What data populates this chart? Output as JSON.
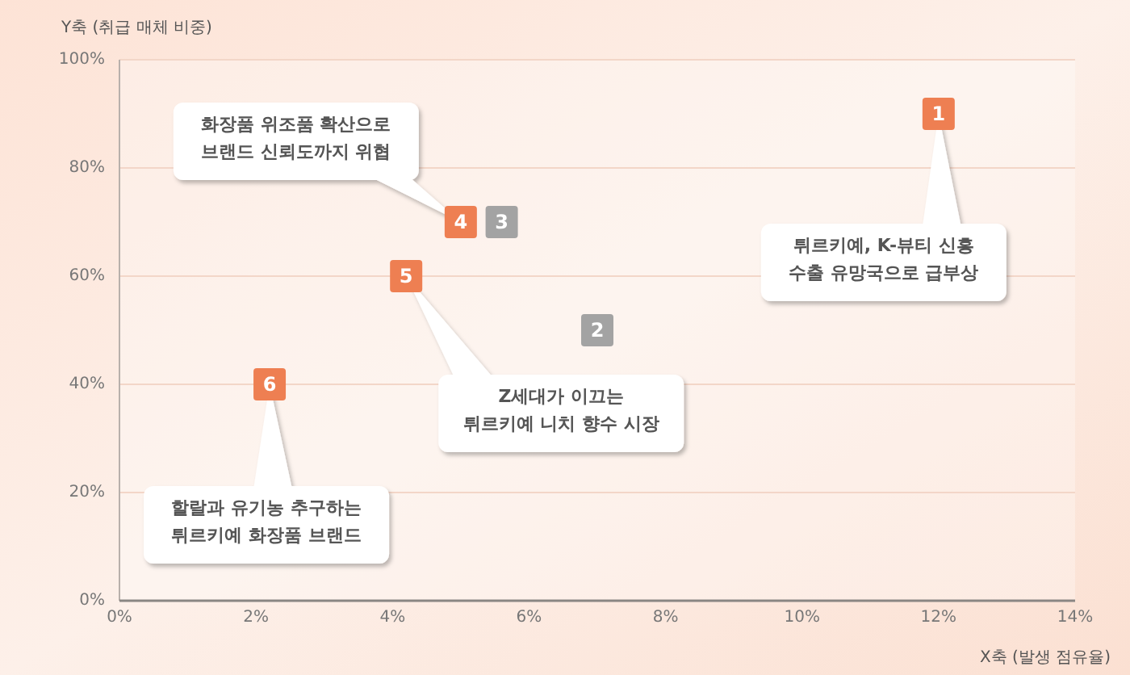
{
  "chart_data": {
    "type": "scatter",
    "xlabel": "X축 (발생 점유율)",
    "ylabel": "Y축 (취급 매체 비중)",
    "xlim": [
      0,
      14
    ],
    "ylim": [
      0,
      100
    ],
    "xticks": [
      {
        "value": 0,
        "label": "0%"
      },
      {
        "value": 2,
        "label": "2%"
      },
      {
        "value": 4,
        "label": "4%"
      },
      {
        "value": 6,
        "label": "6%"
      },
      {
        "value": 8,
        "label": "8%"
      },
      {
        "value": 10,
        "label": "10%"
      },
      {
        "value": 12,
        "label": "12%"
      },
      {
        "value": 14,
        "label": "14%"
      }
    ],
    "yticks": [
      {
        "value": 0,
        "label": "0%"
      },
      {
        "value": 20,
        "label": "20%"
      },
      {
        "value": 40,
        "label": "40%"
      },
      {
        "value": 60,
        "label": "60%"
      },
      {
        "value": 80,
        "label": "80%"
      },
      {
        "value": 100,
        "label": "100%"
      }
    ],
    "grid": "y",
    "marker": "square",
    "series": [
      {
        "color": "#ee7f52",
        "x": [
          12,
          5,
          4.2,
          2.2
        ],
        "values": [
          90,
          70,
          60,
          40
        ]
      },
      {
        "color": "#a3a3a3",
        "x": [
          7,
          5.6
        ],
        "values": [
          50,
          70
        ]
      }
    ],
    "annotations": [
      {
        "text": "1",
        "x": 12,
        "y": 90
      },
      {
        "text": "2",
        "x": 7,
        "y": 50
      },
      {
        "text": "3",
        "x": 5.6,
        "y": 70
      },
      {
        "text": "4",
        "x": 5,
        "y": 70
      },
      {
        "text": "5",
        "x": 4.2,
        "y": 60
      },
      {
        "text": "6",
        "x": 2.2,
        "y": 40
      },
      "튀르키예, K-뷰티 신흥\n수출 유망국으로 급부상",
      "화장품 위조품 확산으로\n브랜드 신뢰도까지 위협",
      "Z세대가 이끄는\n튀르키예 니치 향수 시장",
      "할랄과 유기농 추구하는\n튀르키예 화장품 브랜드"
    ]
  }
}
